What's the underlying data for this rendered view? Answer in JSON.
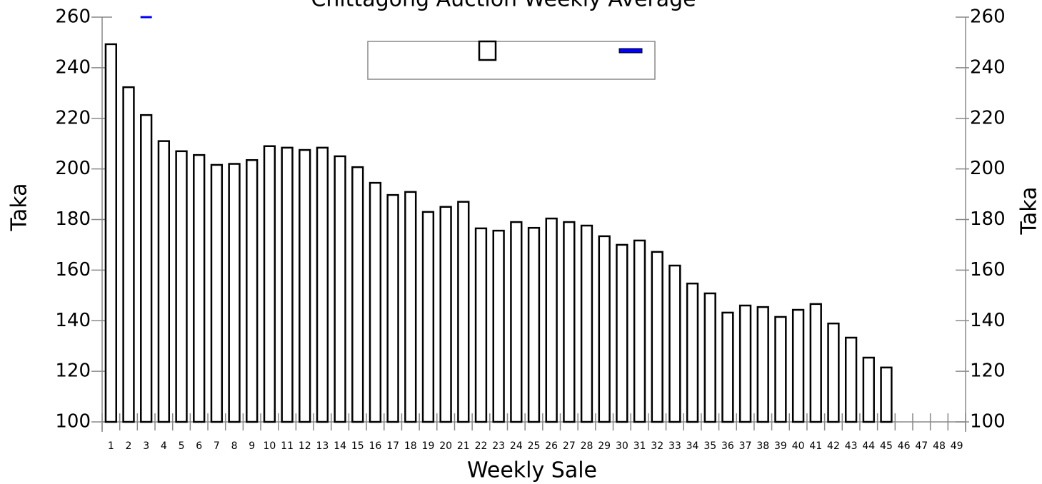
{
  "chart_data": {
    "type": "bar",
    "title": "Chittagong Auction Weekly Average",
    "x_label": "Weekly Sale",
    "y_label": "Taka",
    "y2_label": "Taka",
    "categories": [
      "1",
      "2",
      "3",
      "4",
      "5",
      "6",
      "7",
      "8",
      "9",
      "10",
      "11",
      "12",
      "13",
      "14",
      "15",
      "16",
      "17",
      "18",
      "19",
      "20",
      "21",
      "22",
      "23",
      "24",
      "25",
      "26",
      "27",
      "28",
      "29",
      "30",
      "31",
      "32",
      "33",
      "34",
      "35",
      "36",
      "37",
      "38",
      "39",
      "40",
      "41",
      "42",
      "43",
      "44",
      "45",
      "46",
      "47",
      "48",
      "49"
    ],
    "series": [
      {
        "type": "bar",
        "color": "#000000",
        "values": [
          249.3,
          232.3,
          221.3,
          211,
          207,
          205.5,
          201.6,
          202,
          203.5,
          209,
          208.4,
          207.5,
          208.4,
          205,
          200.7,
          194.5,
          189.7,
          190.9,
          183,
          185,
          187,
          176.5,
          175.6,
          179,
          176.7,
          180.4,
          179,
          177.6,
          173.4,
          170,
          171.7,
          167.2,
          161.8,
          154.7,
          150.8,
          143.2,
          146,
          145.4,
          141.5,
          144.3,
          146.6,
          138.9,
          133.3,
          125.4,
          121.5,
          null,
          null,
          null,
          null
        ]
      },
      {
        "type": "line",
        "color": "#0000ff",
        "values": [
          null,
          null,
          260,
          null,
          null,
          null,
          null,
          null,
          null,
          null,
          null,
          null,
          null,
          null,
          null,
          null,
          null,
          null,
          null,
          null,
          null,
          null,
          null,
          null,
          null,
          null,
          null,
          null,
          null,
          null,
          null,
          null,
          null,
          null,
          null,
          null,
          null,
          null,
          null,
          null,
          null,
          null,
          null,
          null,
          null,
          null,
          null,
          null,
          null
        ]
      }
    ],
    "ylim": [
      100,
      260
    ],
    "yticks": [
      100,
      120,
      140,
      160,
      180,
      200,
      220,
      240,
      260
    ],
    "y2lim": [
      100,
      260
    ],
    "y2ticks": [
      100,
      120,
      140,
      160,
      180,
      200,
      220,
      240,
      260
    ],
    "legend": "top"
  }
}
